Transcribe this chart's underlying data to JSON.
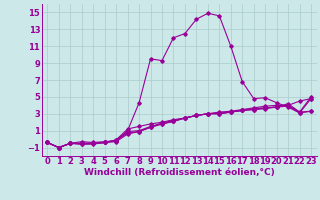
{
  "xlabel": "Windchill (Refroidissement éolien,°C)",
  "background_color": "#cce8e8",
  "grid_color": "#aacccc",
  "line_color": "#990099",
  "xlim": [
    -0.5,
    23.5
  ],
  "ylim": [
    -2.0,
    16.0
  ],
  "xticks": [
    0,
    1,
    2,
    3,
    4,
    5,
    6,
    7,
    8,
    9,
    10,
    11,
    12,
    13,
    14,
    15,
    16,
    17,
    18,
    19,
    20,
    21,
    22,
    23
  ],
  "yticks": [
    -1,
    1,
    3,
    5,
    7,
    9,
    11,
    13,
    15
  ],
  "curves": [
    [
      0,
      -0.4,
      1,
      -1.0,
      2,
      -0.5,
      3,
      -0.3,
      4,
      -0.4,
      5,
      -0.3,
      6,
      -0.2,
      7,
      1.0,
      8,
      4.3,
      9,
      9.5,
      10,
      9.3,
      11,
      12.0,
      12,
      12.5,
      13,
      14.2,
      14,
      14.9,
      15,
      14.6,
      16,
      11.0,
      17,
      6.8,
      18,
      4.8,
      19,
      4.9,
      20,
      4.3,
      21,
      3.8,
      22,
      3.1,
      23,
      3.3
    ],
    [
      0,
      -0.4,
      1,
      -1.0,
      2,
      -0.5,
      3,
      -0.5,
      4,
      -0.5,
      5,
      -0.4,
      6,
      -0.1,
      7,
      1.2,
      8,
      1.5,
      9,
      1.8,
      10,
      2.0,
      11,
      2.3,
      12,
      2.5,
      13,
      2.8,
      14,
      3.0,
      15,
      3.2,
      16,
      3.3,
      17,
      3.5,
      18,
      3.7,
      19,
      3.9,
      20,
      4.0,
      21,
      4.0,
      22,
      3.2,
      23,
      3.3
    ],
    [
      0,
      -0.4,
      1,
      -1.0,
      2,
      -0.5,
      3,
      -0.5,
      4,
      -0.5,
      5,
      -0.4,
      6,
      -0.2,
      7,
      0.9,
      8,
      1.0,
      9,
      1.5,
      10,
      1.9,
      11,
      2.2,
      12,
      2.5,
      13,
      2.8,
      14,
      3.0,
      15,
      3.1,
      16,
      3.2,
      17,
      3.4,
      18,
      3.5,
      19,
      3.7,
      20,
      3.8,
      21,
      3.9,
      22,
      3.1,
      23,
      4.8
    ],
    [
      0,
      -0.4,
      1,
      -1.0,
      2,
      -0.5,
      3,
      -0.6,
      4,
      -0.5,
      5,
      -0.4,
      6,
      -0.1,
      7,
      0.7,
      8,
      0.9,
      9,
      1.4,
      10,
      1.8,
      11,
      2.1,
      12,
      2.5,
      13,
      2.8,
      14,
      3.0,
      15,
      3.0,
      16,
      3.2,
      17,
      3.4,
      18,
      3.5,
      19,
      3.6,
      20,
      3.8,
      21,
      4.0,
      22,
      4.5,
      23,
      4.8
    ],
    [
      0,
      -0.4,
      1,
      -1.0,
      2,
      -0.5,
      3,
      -0.6,
      4,
      -0.6,
      5,
      -0.4,
      6,
      -0.3,
      7,
      0.6,
      8,
      0.9,
      9,
      1.4,
      10,
      1.8,
      11,
      2.1,
      12,
      2.5,
      13,
      2.8,
      14,
      3.0,
      15,
      3.0,
      16,
      3.2,
      17,
      3.4,
      18,
      3.6,
      19,
      3.7,
      20,
      3.8,
      21,
      4.2,
      22,
      3.2,
      23,
      5.0
    ]
  ],
  "tick_fontsize": 6.0,
  "xlabel_fontsize": 6.5
}
